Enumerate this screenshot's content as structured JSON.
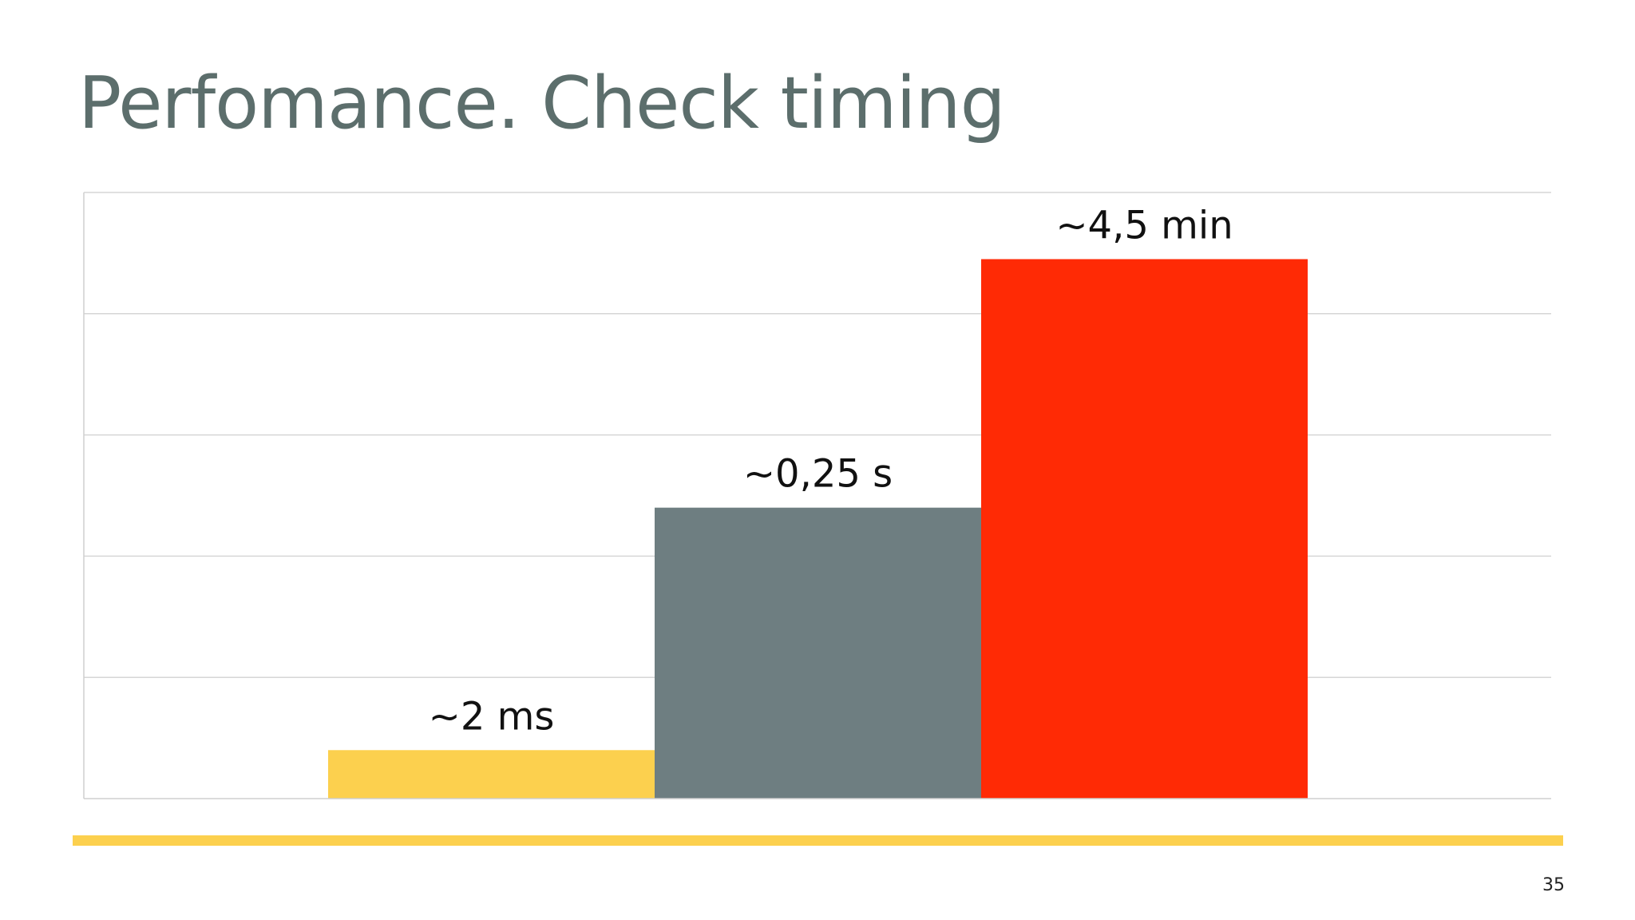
{
  "slide": {
    "title": "Perfomance. Check timing",
    "page_number": "35",
    "accent_color": "#fcd04e"
  },
  "chart_data": {
    "type": "bar",
    "categories": [
      "",
      "",
      ""
    ],
    "values": [
      0.8,
      4.8,
      8.9
    ],
    "data_labels": [
      "~2 ms",
      "~0,25 s",
      "~4,5 min"
    ],
    "colors": [
      "#fcd04e",
      "#6e7e81",
      "#ff2a05"
    ],
    "ylim": [
      0,
      10
    ],
    "grid": true,
    "legend": "none"
  }
}
